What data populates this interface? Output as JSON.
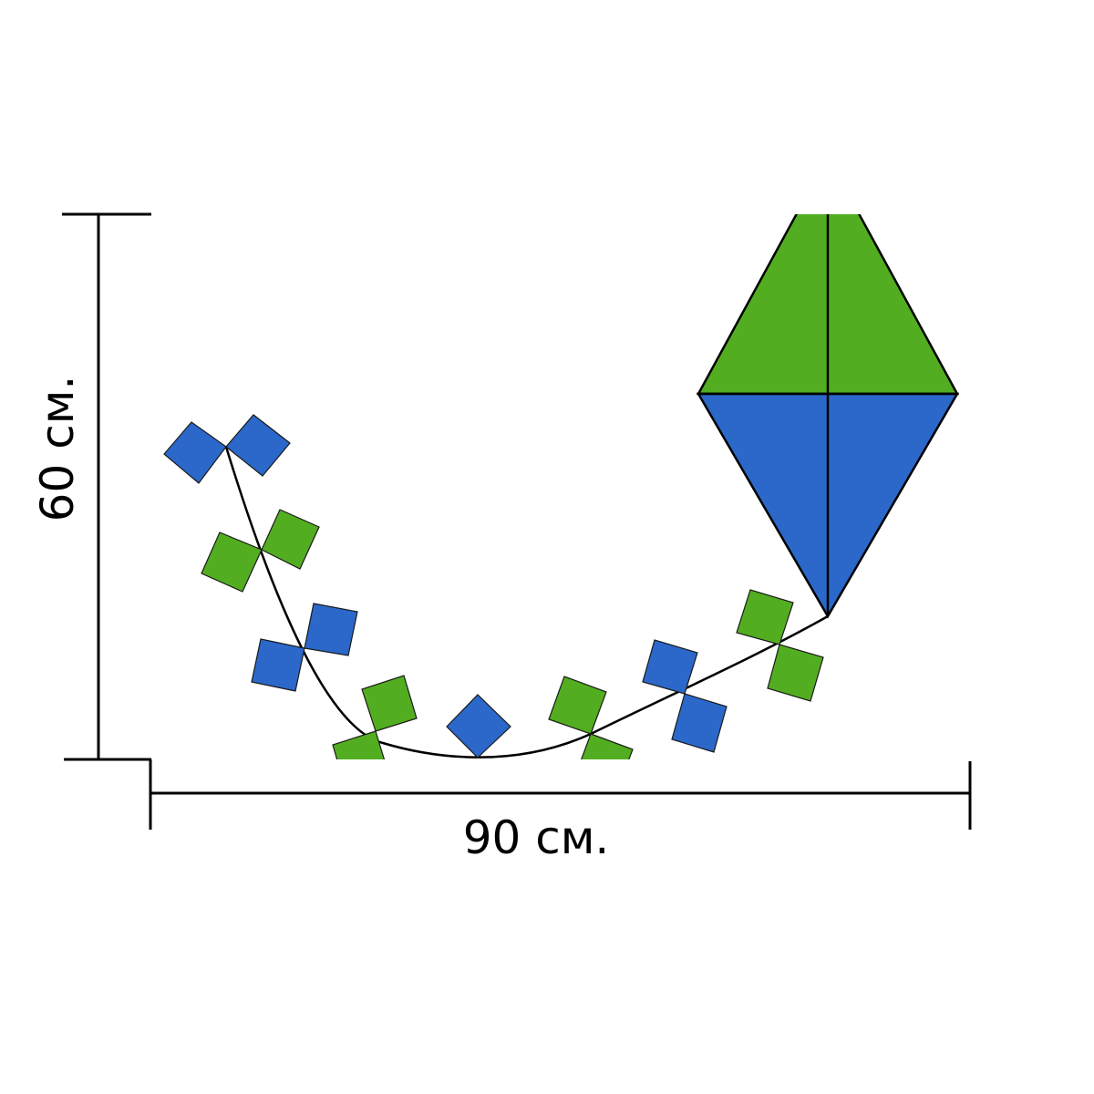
{
  "dimensions": {
    "width_label": "90 см.",
    "height_label": "60 см."
  },
  "colors": {
    "green": "#52ae20",
    "blue": "#2b68ca",
    "line": "#000000",
    "background": "#ffffff"
  },
  "kite": {
    "upper_color": "green",
    "lower_color": "blue"
  },
  "tail": {
    "bows": [
      {
        "color": "blue"
      },
      {
        "color": "green"
      },
      {
        "color": "blue"
      },
      {
        "color": "green"
      },
      {
        "color": "blue"
      },
      {
        "color": "green"
      },
      {
        "color": "blue"
      },
      {
        "color": "green"
      }
    ]
  }
}
